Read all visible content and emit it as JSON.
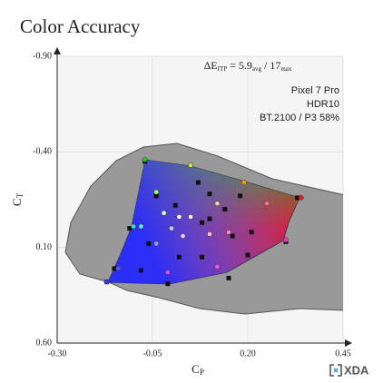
{
  "chart_data": {
    "type": "scatter",
    "title": "Color Accuracy",
    "x_label": {
      "text": "C",
      "sub": "P"
    },
    "y_label": {
      "text": "C",
      "sub": "T"
    },
    "xlim": [
      -0.3,
      0.45
    ],
    "ylim": [
      -0.9,
      0.6
    ],
    "y_inverted": true,
    "xticks": [
      {
        "value": -0.3,
        "label": "-0.30"
      },
      {
        "value": -0.05,
        "label": "-0.05"
      },
      {
        "value": 0.2,
        "label": "0.20"
      },
      {
        "value": 0.45,
        "label": "0.45"
      }
    ],
    "yticks": [
      {
        "value": -0.9,
        "label": "-0.90"
      },
      {
        "value": -0.4,
        "label": "-0.40"
      },
      {
        "value": 0.1,
        "label": "0.10"
      },
      {
        "value": 0.6,
        "label": "0.60"
      }
    ],
    "grid": true,
    "metric": [
      "ΔE",
      "ITP",
      "= 5.9",
      "avg",
      "/ 17",
      "max"
    ],
    "annotations": [
      "Pixel 7 Pro",
      "HDR10",
      "BT.2100 / P3 58%"
    ],
    "series": [
      {
        "marker": "square",
        "color": "#111111",
        "x": [
          -0.07,
          0.07,
          0.18,
          0.33,
          -0.04,
          -0.11,
          -0.06,
          0.01,
          0.1,
          0.14,
          0.08,
          0.16,
          0.02,
          0.08,
          0.2,
          0.3,
          -0.08,
          -0.17,
          -0.15,
          -0.01,
          0.15,
          0.21,
          0.1
        ],
        "y": [
          -0.35,
          -0.24,
          -0.17,
          -0.16,
          -0.17,
          0.0,
          0.08,
          -0.12,
          -0.18,
          -0.1,
          -0.03,
          0.04,
          0.15,
          0.15,
          0.14,
          0.07,
          0.22,
          0.28,
          0.21,
          0.29,
          0.26,
          0.02,
          -0.05
        ]
      },
      {
        "marker": "circle",
        "x": [
          -0.07,
          0.05,
          0.19,
          0.34,
          -0.04,
          -0.1,
          -0.08,
          -0.02,
          0.02,
          0.05,
          0.0,
          -0.04,
          0.03,
          0.1,
          0.15,
          0.3,
          0.25,
          0.12,
          -0.14,
          -0.17,
          -0.01,
          0.12
        ],
        "y": [
          -0.36,
          -0.33,
          -0.24,
          -0.16,
          -0.19,
          -0.01,
          -0.01,
          -0.08,
          -0.06,
          -0.06,
          0.0,
          0.08,
          0.04,
          0.03,
          0.02,
          0.06,
          -0.13,
          -0.13,
          0.21,
          0.28,
          0.23,
          0.2
        ],
        "colors": [
          "#22cc22",
          "#dddd33",
          "#ff9900",
          "#ee2222",
          "#99ff66",
          "#33ddcc",
          "#66eeee",
          "#ddffdd",
          "#ffffff",
          "#ffeeee",
          "#ccccff",
          "#9999ff",
          "#eeccff",
          "#ffbbdd",
          "#ff88aa",
          "#ff33cc",
          "#ff7777",
          "#ffccaa",
          "#5555ff",
          "#3333ff",
          "#cc55ff",
          "#ee55ee"
        ]
      }
    ],
    "logo": "XDA"
  }
}
